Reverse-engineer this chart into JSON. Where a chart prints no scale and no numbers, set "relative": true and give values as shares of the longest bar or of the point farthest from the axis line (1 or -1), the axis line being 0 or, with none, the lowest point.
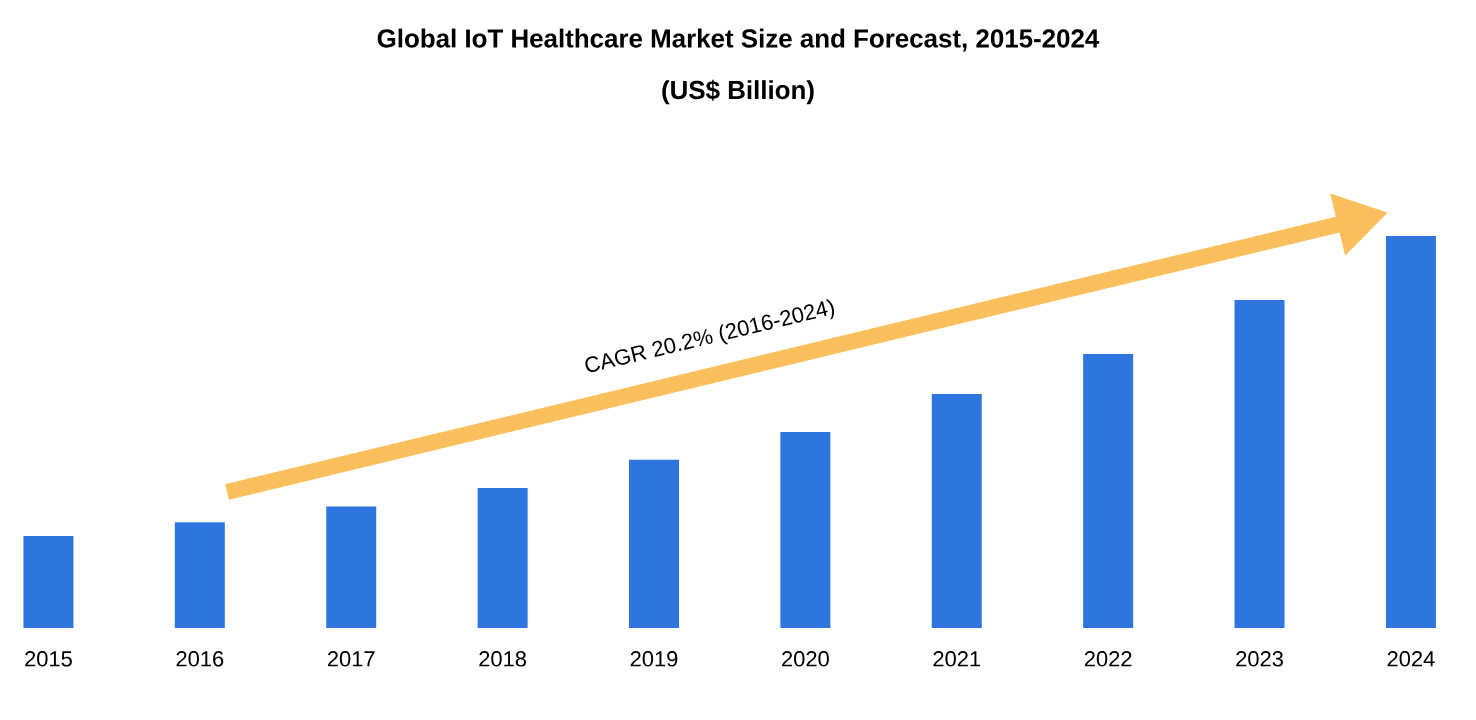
{
  "chart_data": {
    "type": "bar",
    "title": "Global IoT Healthcare Market Size and Forecast, 2015-2024",
    "subtitle": "(US$ Billion)",
    "categories": [
      "2015",
      "2016",
      "2017",
      "2018",
      "2019",
      "2020",
      "2021",
      "2022",
      "2023",
      "2024"
    ],
    "values": [
      0.235,
      0.27,
      0.31,
      0.357,
      0.429,
      0.5,
      0.597,
      0.699,
      0.837,
      1
    ],
    "color": "#2e75de",
    "relative": true,
    "annotations": [
      "CAGR 20.2% (2016-2024)"
    ]
  }
}
